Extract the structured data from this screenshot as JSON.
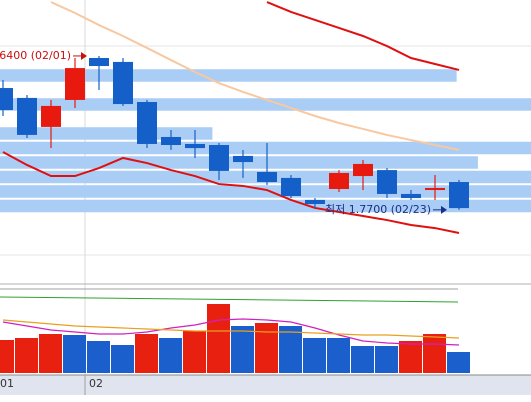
{
  "chart_data": {
    "type": "candlestick",
    "categories": [
      "01",
      null,
      null,
      null,
      "02",
      null,
      null,
      null,
      null,
      null,
      null,
      null,
      null,
      null,
      null,
      null,
      null,
      null,
      null,
      null
    ],
    "open": [
      2.484,
      2.426,
      2.256,
      2.414,
      2.66,
      2.637,
      2.402,
      2.197,
      2.156,
      2.15,
      2.086,
      1.992,
      1.957,
      1.828,
      1.892,
      1.968,
      2.003,
      1.863,
      1.886,
      1.933
    ],
    "high": [
      2.531,
      2.443,
      2.414,
      2.66,
      2.672,
      2.66,
      2.414,
      2.238,
      2.238,
      2.162,
      2.121,
      2.162,
      1.974,
      1.839,
      2.003,
      2.062,
      2.015,
      1.886,
      1.974,
      1.945
    ],
    "low": [
      2.32,
      2.191,
      2.132,
      2.367,
      2.472,
      2.379,
      2.132,
      2.121,
      2.074,
      1.945,
      1.957,
      1.916,
      1.839,
      1.78,
      1.874,
      1.886,
      1.839,
      1.828,
      1.828,
      1.77
    ],
    "close": [
      2.355,
      2.209,
      2.379,
      2.601,
      2.613,
      2.39,
      2.156,
      2.15,
      2.132,
      1.998,
      2.05,
      1.933,
      1.851,
      1.804,
      1.986,
      2.039,
      1.863,
      1.839,
      1.898,
      1.78
    ],
    "up_color": "#e8190f",
    "down_color": "#1560c8",
    "ylim": [
      1.3,
      3.0
    ],
    "moving_averages": [
      {
        "color": "#e01010",
        "values": [
          2.109,
          2.033,
          1.968,
          1.968,
          2.015,
          2.074,
          2.044,
          2.003,
          1.968,
          1.921,
          1.91,
          1.886,
          1.828,
          1.781,
          1.757,
          1.734,
          1.71,
          1.681,
          1.663,
          1.634
        ]
      },
      {
        "color": "#e01010",
        "values": [
          null,
          null,
          null,
          null,
          null,
          null,
          null,
          null,
          null,
          null,
          null,
          2.988,
          2.93,
          2.883,
          2.836,
          2.789,
          2.73,
          2.66,
          2.625,
          2.59
        ]
      },
      {
        "color": "#f8c8a0",
        "values": [
          null,
          null,
          2.988,
          2.924,
          2.853,
          2.789,
          2.719,
          2.648,
          2.578,
          2.513,
          2.461,
          2.414,
          2.367,
          2.32,
          2.279,
          2.244,
          2.209,
          2.179,
          2.15,
          2.121
        ]
      }
    ],
    "bands": {
      "edges": [
        1.75,
        1.835,
        1.92,
        2.005,
        2.09,
        2.175,
        2.26,
        2.345,
        2.43,
        2.515,
        2.6
      ],
      "values": [
        100,
        100,
        100,
        90,
        100,
        40,
        0,
        100,
        0,
        86
      ],
      "xlim": [
        0,
        100
      ],
      "color": "#a9cdf5"
    },
    "annotations": [
      {
        "text": "6400 (02/01)",
        "at": "high",
        "color": "#c81010"
      },
      {
        "text": "최저 1.7700 (02/23)",
        "at": "low",
        "color": "#1a2f8a"
      }
    ],
    "volume": {
      "values": [
        33,
        35,
        39,
        38,
        32,
        28,
        39,
        35,
        42,
        69,
        47,
        50,
        47,
        35,
        35,
        27,
        27,
        32,
        39,
        21
      ],
      "colors": [
        "#e82010",
        "#e82010",
        "#e82010",
        "#1a5fcc",
        "#1a5fcc",
        "#1a5fcc",
        "#e82010",
        "#1a5fcc",
        "#e82010",
        "#e82010",
        "#1a5fcc",
        "#e82010",
        "#1a5fcc",
        "#1a5fcc",
        "#1a5fcc",
        "#1a5fcc",
        "#1a5fcc",
        "#e82010",
        "#e82010",
        "#1a5fcc"
      ],
      "ylim": [
        0,
        90
      ],
      "moving_averages": [
        {
          "color": "#d020c0",
          "values": [
            51,
            47,
            43,
            41,
            39,
            39,
            41,
            45,
            48,
            53,
            54,
            53,
            51,
            45,
            38,
            32,
            30,
            29,
            29,
            28
          ]
        },
        {
          "color": "#e8a020",
          "values": [
            53,
            51,
            49,
            47,
            46,
            45,
            44,
            43,
            42,
            42,
            42,
            41,
            41,
            40,
            39,
            38,
            38,
            37,
            36,
            35
          ]
        }
      ]
    }
  }
}
